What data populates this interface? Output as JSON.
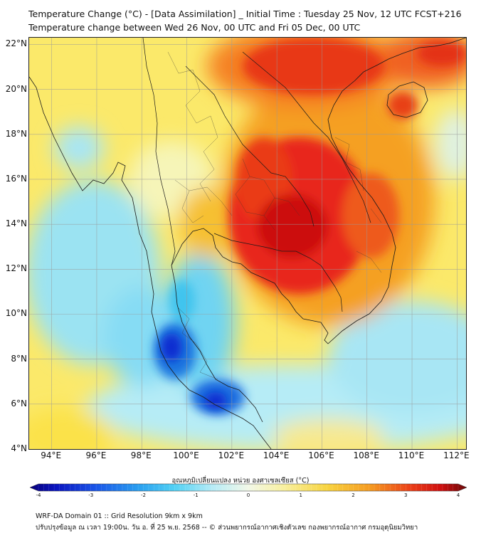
{
  "header": {
    "title_line1": "Temperature Change (°C) - [Data Assimilation] _ Initial Time : Tuesday 25 Nov, 12 UTC FCST+216",
    "title_line2": "Temperature change between Wed 26 Nov, 00 UTC and Fri 05 Dec, 00 UTC"
  },
  "map": {
    "lat_labels": [
      "22°N",
      "20°N",
      "18°N",
      "16°N",
      "14°N",
      "12°N",
      "10°N",
      "8°N",
      "6°N",
      "4°N"
    ],
    "lon_labels": [
      "94°E",
      "96°E",
      "98°E",
      "100°E",
      "102°E",
      "104°E",
      "106°E",
      "108°E",
      "110°E",
      "112°E"
    ],
    "lat_range": [
      4,
      22.3
    ],
    "lon_range": [
      93,
      112.4
    ],
    "colors": {
      "warm_red": "#e81a10",
      "orange": "#f5a020",
      "yellow": "#fbe96a",
      "pale": "#eef6d0",
      "light_blue": "#9be3f2",
      "cyan": "#40c4ee",
      "blue": "#1a78e0",
      "dark_blue": "#0a1ec8",
      "border": "#1a1a1a"
    }
  },
  "colorbar": {
    "title": "อุณหภูมิเปลี่ยนแปลง หน่วย องศาเซลเซียส (°C)",
    "ticks": [
      "-4",
      "-3",
      "-2",
      "-1",
      "0",
      "1",
      "2",
      "3",
      "4"
    ],
    "range": [
      -4,
      4
    ]
  },
  "footer": {
    "line1": "WRF-DA Domain 01 :: Grid Resolution 9km x 9km",
    "line2": "ปรับปรุงข้อมูล ณ เวลา 19:00น. วัน อ. ที่ 25 พ.ย. 2568 -- © ส่วนพยากรณ์อากาศเชิงตัวเลข กองพยากรณ์อากาศ กรมอุตุนิยมวิทยา"
  }
}
